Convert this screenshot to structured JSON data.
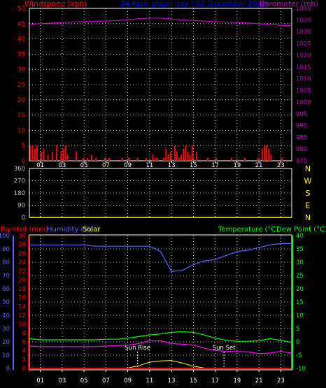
{
  "colors": {
    "background": "#000000",
    "frame": "#ffffff",
    "grid": "#ffffff",
    "wind": "#ff0000",
    "title": "#0000ff",
    "barometer": "#c000c0",
    "direction_axis": "#c0c0c0",
    "direction_letters": "#ffff00",
    "direction_line": "#ffff00",
    "rainfall": "#ff0000",
    "humidity": "#6060ff",
    "solar": "#ffff00",
    "temperature": "#00ff00",
    "dew_point": "#ff00ff",
    "sun_marker": "#ffffff"
  },
  "header": {
    "windspeed_label": "Windspeed (kph)",
    "title": "24 hour graph day : 02 December 2013",
    "barometer_label": "Barometer (mb)"
  },
  "hour_ticks": [
    "01",
    "03",
    "05",
    "07",
    "09",
    "11",
    "13",
    "15",
    "17",
    "19",
    "21",
    "23"
  ],
  "direction_letters": [
    "N",
    "W",
    "S",
    "E",
    "N"
  ],
  "lower_labels": {
    "rainfall": "Rainfall (mm)",
    "humidity": "Humidity (%)",
    "solar": "Solar",
    "temperature": "Temperature (°C)",
    "dew_point": "Dew Point (°C)",
    "sun_rise": "Sun Rise",
    "sun_set": "Sun Set"
  },
  "chart_data": [
    {
      "type": "line",
      "panel": "wind-barometer",
      "xlabel": "",
      "x_hours": [
        0,
        1,
        2,
        3,
        4,
        5,
        6,
        7,
        8,
        9,
        10,
        11,
        12,
        13,
        14,
        15,
        16,
        17,
        18,
        19,
        20,
        21,
        22,
        23,
        24
      ],
      "y_left": {
        "label": "Windspeed (kph)",
        "ylim": [
          0,
          50
        ],
        "ticks": [
          0,
          5,
          10,
          15,
          20,
          25,
          30,
          35,
          40,
          45,
          50
        ]
      },
      "y_right": {
        "label": "Barometer (mb)",
        "ylim": [
          975,
          1040
        ],
        "ticks": [
          975,
          980,
          985,
          990,
          995,
          1000,
          1005,
          1010,
          1015,
          1020,
          1025,
          1030,
          1035,
          1040
        ]
      },
      "series": [
        {
          "name": "Barometer (mb)",
          "axis": "right",
          "values": [
            1033.2,
            1033.5,
            1033.8,
            1034.0,
            1034.2,
            1034.4,
            1034.5,
            1034.6,
            1034.8,
            1035.2,
            1035.6,
            1035.9,
            1035.9,
            1035.5,
            1035.1,
            1034.8,
            1034.6,
            1034.4,
            1034.2,
            1034.0,
            1033.8,
            1033.5,
            1033.2,
            1032.8,
            1032.6
          ]
        },
        {
          "name": "Windspeed (kph)",
          "axis": "left",
          "style": "bars",
          "x": [
            0.1,
            0.3,
            0.5,
            0.7,
            1.1,
            1.3,
            1.7,
            2.1,
            2.5,
            2.9,
            3.1,
            3.3,
            3.5,
            4.3,
            4.9,
            5.3,
            5.7,
            6.1,
            6.9,
            7.3,
            8.5,
            9.1,
            9.9,
            10.7,
            11.3,
            11.5,
            11.7,
            12.3,
            12.5,
            12.7,
            12.9,
            13.3,
            13.5,
            13.7,
            13.9,
            14.1,
            14.3,
            14.5,
            14.7,
            14.9,
            15.3,
            16.3,
            17.1,
            18.5,
            19.7,
            20.9,
            21.3,
            21.5,
            21.7,
            21.9,
            22.1,
            23.1
          ],
          "values": [
            5,
            5,
            4,
            5,
            3,
            4,
            2,
            3,
            5,
            3,
            4,
            5,
            2,
            3,
            1,
            1,
            2,
            1,
            1,
            1,
            1,
            1,
            1,
            1,
            2,
            1,
            1,
            1,
            4,
            2,
            3,
            5,
            3,
            1,
            2,
            4,
            5,
            3,
            2,
            5,
            3,
            1,
            1,
            1,
            1,
            1,
            4,
            5,
            5,
            4,
            2,
            1
          ]
        }
      ]
    },
    {
      "type": "line",
      "panel": "wind-direction",
      "y_left": {
        "label": "",
        "ylim": [
          0,
          360
        ],
        "ticks": [
          0,
          90,
          180,
          270,
          360
        ]
      },
      "x_hours": [
        0,
        24
      ],
      "series": [
        {
          "name": "",
          "values": [
            0,
            0
          ]
        }
      ]
    },
    {
      "type": "line",
      "panel": "rain-humidity-temperature",
      "x_hours": [
        0,
        1,
        2,
        3,
        4,
        5,
        6,
        7,
        8,
        9,
        10,
        11,
        12,
        13,
        14,
        15,
        16,
        17,
        18,
        19,
        20,
        21,
        22,
        23,
        24
      ],
      "y_axes": {
        "humidity": {
          "label": "Humidity (%)",
          "ylim": [
            0,
            100
          ],
          "ticks": [
            0,
            10,
            20,
            30,
            40,
            50,
            60,
            70,
            80,
            90,
            100
          ]
        },
        "rainfall": {
          "label": "Rainfall (mm)",
          "ylim": [
            0,
            30
          ],
          "ticks": [
            0,
            2,
            4,
            6,
            8,
            10,
            12,
            14,
            16,
            18,
            20,
            22,
            24,
            26,
            28,
            30
          ]
        },
        "temperature": {
          "label": "Temperature (°C)",
          "ylim": [
            -10,
            40
          ],
          "ticks": [
            -10,
            -5,
            0,
            5,
            10,
            15,
            20,
            25,
            30,
            35,
            40
          ]
        }
      },
      "series": [
        {
          "name": "Humidity (%)",
          "axis": "humidity",
          "values": [
            93,
            93,
            93,
            93,
            93,
            93,
            92,
            92,
            92,
            92,
            92,
            92,
            88,
            73,
            74,
            78,
            81,
            82,
            85,
            88,
            89,
            91,
            93,
            94,
            94
          ]
        },
        {
          "name": "Temperature (°C)",
          "axis": "temperature",
          "values": [
            1.2,
            0.8,
            0.8,
            0.8,
            0.8,
            0.8,
            0.8,
            1.0,
            1.0,
            1.4,
            2.0,
            2.6,
            3.0,
            3.6,
            3.8,
            3.6,
            2.6,
            1.4,
            0.6,
            0.2,
            0.2,
            0.4,
            1.2,
            0.6,
            -0.2
          ]
        },
        {
          "name": "Dew Point (°C)",
          "axis": "temperature",
          "values": [
            -1.6,
            -1.8,
            -1.8,
            -1.8,
            -1.8,
            -1.8,
            -1.8,
            -1.6,
            -1.4,
            -1.2,
            -0.6,
            0.4,
            0.4,
            -0.6,
            -0.9,
            -1.2,
            -2.4,
            -3.2,
            -3.6,
            -3.6,
            -3.8,
            -4.4,
            -4.2,
            -3.6,
            -4.2
          ]
        },
        {
          "name": "Solar",
          "axis": "rainfall",
          "values": [
            0,
            0,
            0,
            0,
            0,
            0,
            0,
            0,
            0,
            0.1,
            0.6,
            1.4,
            1.7,
            1.8,
            1.2,
            0.5,
            0.1,
            0,
            0,
            0,
            0,
            0,
            0,
            0,
            0
          ]
        },
        {
          "name": "Rainfall (mm)",
          "axis": "rainfall",
          "values": [
            0,
            0,
            0,
            0,
            0,
            0,
            0,
            0,
            0,
            0,
            0,
            0,
            0,
            0,
            0,
            0,
            0,
            0,
            0,
            0,
            0,
            0,
            0,
            0,
            0
          ]
        }
      ],
      "annotations": [
        {
          "label": "Sun Rise",
          "x_hour": 9.9
        },
        {
          "label": "Sun Set",
          "x_hour": 17.8
        }
      ]
    }
  ]
}
